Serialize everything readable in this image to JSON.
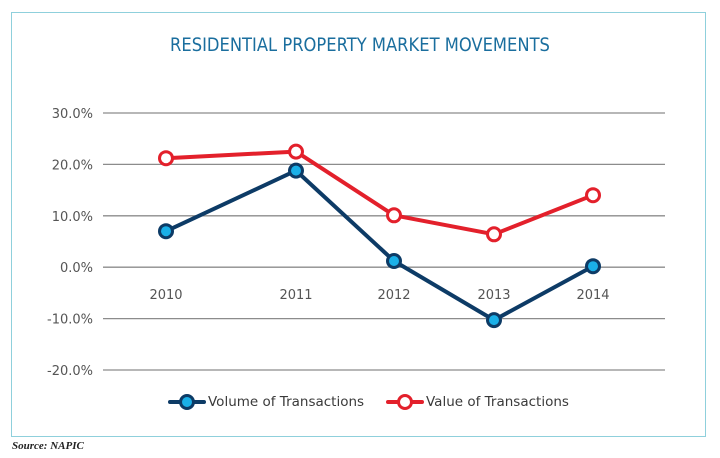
{
  "chart_data": {
    "type": "line",
    "title": "RESIDENTIAL PROPERTY MARKET MOVEMENTS",
    "xlabel": "",
    "ylabel": "",
    "categories": [
      "2010",
      "2011",
      "2012",
      "2013",
      "2014"
    ],
    "ylim": [
      -20,
      30
    ],
    "yticks": [
      30,
      20,
      10,
      0,
      -10,
      -20
    ],
    "ytick_labels": [
      "30.0%",
      "20.0%",
      "10.0%",
      "0.0%",
      "-10.0%",
      "-20.0%"
    ],
    "grid": true,
    "legend_position": "bottom",
    "series": [
      {
        "name": "Volume of Transactions",
        "values": [
          7.0,
          18.8,
          1.2,
          -10.3,
          0.2
        ],
        "line_color": "#0d3b66",
        "marker_fill": "#1ab0e8",
        "marker_stroke": "#0d3b66"
      },
      {
        "name": "Value of Transactions",
        "values": [
          21.2,
          22.5,
          10.1,
          6.4,
          14.0
        ],
        "line_color": "#e3202b",
        "marker_fill": "#ffffff",
        "marker_stroke": "#e3202b"
      }
    ]
  },
  "header": {
    "title": "RESIDENTIAL PROPERTY MARKET MOVEMENTS"
  },
  "legend": {
    "items": [
      {
        "label": "Volume of Transactions"
      },
      {
        "label": "Value of Transactions"
      }
    ]
  },
  "footer": {
    "source": "Source: NAPIC"
  },
  "colors": {
    "title": "#1a6e9e",
    "frame": "#8fd0dc",
    "grid": "#8c8c8c"
  }
}
